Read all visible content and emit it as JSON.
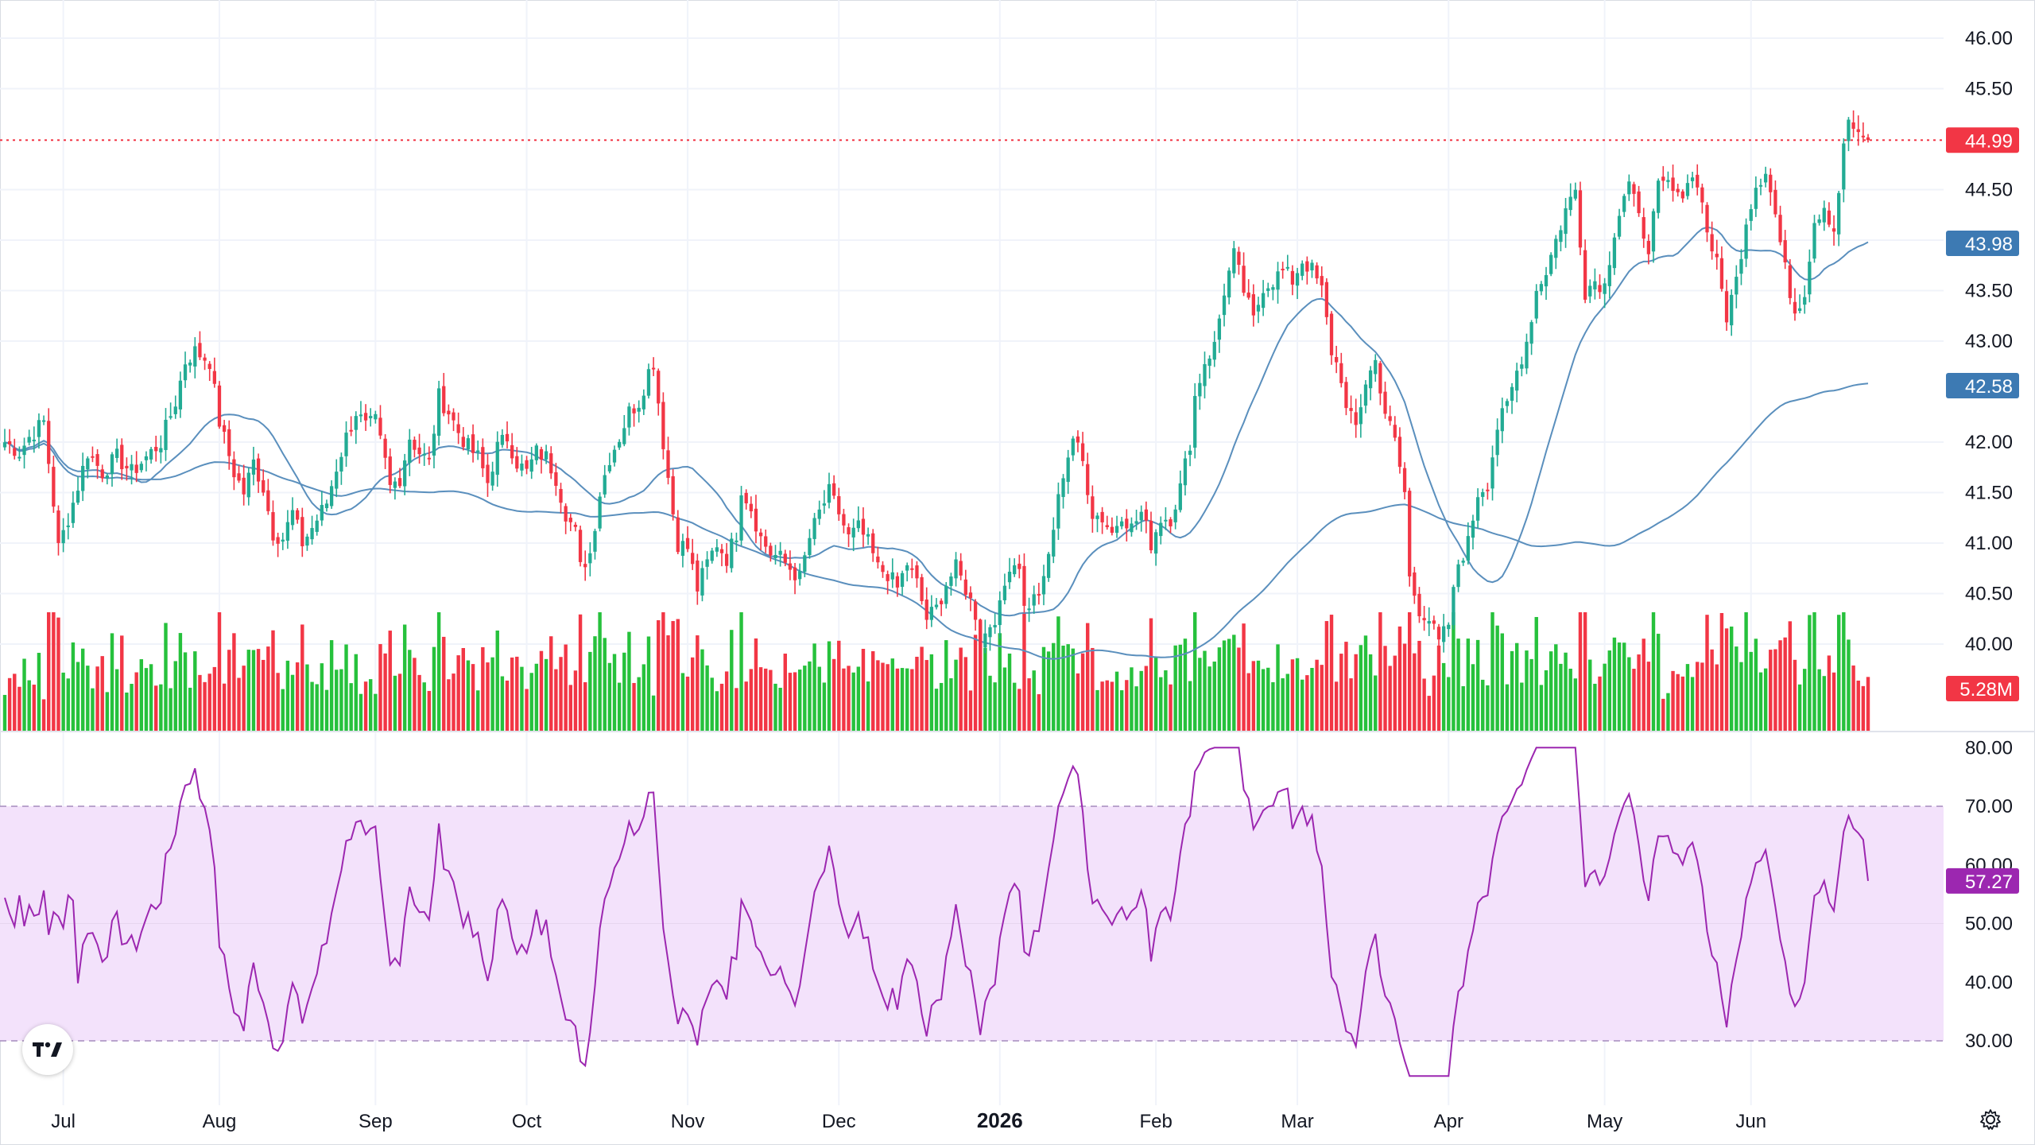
{
  "chart_data": {
    "type": "candlestick",
    "price_axis": {
      "ticks": [
        "46.00",
        "45.50",
        "44.50",
        "44.00",
        "43.50",
        "43.00",
        "42.00",
        "41.50",
        "41.00",
        "40.50",
        "40.00"
      ],
      "range": [
        39.7,
        46.2
      ]
    },
    "rsi_axis": {
      "ticks": [
        "80.00",
        "70.00",
        "60.00",
        "50.00",
        "40.00",
        "30.00"
      ],
      "range": [
        24,
        82
      ],
      "band": [
        30,
        70
      ]
    },
    "time_axis": {
      "labels": [
        {
          "text": "Jul",
          "day": 12,
          "bold": false
        },
        {
          "text": "Aug",
          "day": 44,
          "bold": false
        },
        {
          "text": "Sep",
          "day": 76,
          "bold": false
        },
        {
          "text": "Oct",
          "day": 107,
          "bold": false
        },
        {
          "text": "Nov",
          "day": 140,
          "bold": false
        },
        {
          "text": "Dec",
          "day": 171,
          "bold": false
        },
        {
          "text": "2026",
          "day": 204,
          "bold": true
        },
        {
          "text": "Feb",
          "day": 236,
          "bold": false
        },
        {
          "text": "Mar",
          "day": 265,
          "bold": false
        },
        {
          "text": "Apr",
          "day": 296,
          "bold": false
        },
        {
          "text": "May",
          "day": 328,
          "bold": false
        },
        {
          "text": "Jun",
          "day": 358,
          "bold": false
        }
      ]
    },
    "price_anchors": [
      [
        0,
        42.0
      ],
      [
        3,
        41.9
      ],
      [
        5,
        42.05
      ],
      [
        8,
        42.2
      ],
      [
        10,
        41.4
      ],
      [
        11,
        40.95
      ],
      [
        14,
        41.4
      ],
      [
        17,
        41.9
      ],
      [
        20,
        41.7
      ],
      [
        23,
        41.85
      ],
      [
        26,
        41.7
      ],
      [
        29,
        41.85
      ],
      [
        32,
        42.0
      ],
      [
        35,
        42.4
      ],
      [
        37,
        42.8
      ],
      [
        39,
        42.9
      ],
      [
        42,
        42.8
      ],
      [
        44,
        42.2
      ],
      [
        47,
        41.7
      ],
      [
        49,
        41.5
      ],
      [
        51,
        41.8
      ],
      [
        53,
        41.55
      ],
      [
        55,
        41.1
      ],
      [
        57,
        41.05
      ],
      [
        59,
        41.3
      ],
      [
        61,
        41.0
      ],
      [
        63,
        41.15
      ],
      [
        66,
        41.4
      ],
      [
        68,
        41.75
      ],
      [
        70,
        42.05
      ],
      [
        72,
        42.3
      ],
      [
        74,
        42.15
      ],
      [
        76,
        42.2
      ],
      [
        78,
        41.8
      ],
      [
        79,
        41.55
      ],
      [
        81,
        41.65
      ],
      [
        83,
        42.05
      ],
      [
        85,
        41.9
      ],
      [
        87,
        41.8
      ],
      [
        89,
        42.45
      ],
      [
        91,
        42.3
      ],
      [
        93,
        42.1
      ],
      [
        95,
        41.95
      ],
      [
        97,
        41.85
      ],
      [
        99,
        41.6
      ],
      [
        101,
        41.95
      ],
      [
        103,
        42.05
      ],
      [
        105,
        41.8
      ],
      [
        107,
        41.7
      ],
      [
        109,
        41.9
      ],
      [
        111,
        41.85
      ],
      [
        113,
        41.65
      ],
      [
        115,
        41.3
      ],
      [
        117,
        41.1
      ],
      [
        118,
        40.75
      ],
      [
        120,
        40.9
      ],
      [
        122,
        41.5
      ],
      [
        124,
        41.85
      ],
      [
        126,
        42.05
      ],
      [
        128,
        42.3
      ],
      [
        130,
        42.4
      ],
      [
        132,
        42.7
      ],
      [
        133,
        42.8
      ],
      [
        135,
        42.0
      ],
      [
        137,
        41.3
      ],
      [
        138,
        41.0
      ],
      [
        140,
        40.95
      ],
      [
        142,
        40.55
      ],
      [
        144,
        40.8
      ],
      [
        146,
        41.0
      ],
      [
        148,
        40.85
      ],
      [
        150,
        41.1
      ],
      [
        151,
        41.55
      ],
      [
        153,
        41.35
      ],
      [
        155,
        41.05
      ],
      [
        157,
        40.9
      ],
      [
        159,
        40.85
      ],
      [
        161,
        40.75
      ],
      [
        163,
        40.65
      ],
      [
        165,
        41.05
      ],
      [
        167,
        41.3
      ],
      [
        169,
        41.5
      ],
      [
        171,
        41.3
      ],
      [
        173,
        41.05
      ],
      [
        175,
        41.15
      ],
      [
        177,
        41.0
      ],
      [
        179,
        40.75
      ],
      [
        181,
        40.7
      ],
      [
        183,
        40.55
      ],
      [
        185,
        40.8
      ],
      [
        187,
        40.6
      ],
      [
        189,
        40.25
      ],
      [
        191,
        40.35
      ],
      [
        193,
        40.6
      ],
      [
        195,
        40.75
      ],
      [
        197,
        40.55
      ],
      [
        199,
        40.3
      ],
      [
        200,
        40.0
      ],
      [
        202,
        40.2
      ],
      [
        204,
        40.35
      ],
      [
        206,
        40.8
      ],
      [
        208,
        40.8
      ],
      [
        209,
        40.35
      ],
      [
        211,
        40.45
      ],
      [
        213,
        40.6
      ],
      [
        215,
        41.15
      ],
      [
        217,
        41.7
      ],
      [
        219,
        42.05
      ],
      [
        221,
        41.8
      ],
      [
        223,
        41.3
      ],
      [
        225,
        41.25
      ],
      [
        227,
        41.1
      ],
      [
        229,
        41.3
      ],
      [
        231,
        41.15
      ],
      [
        233,
        41.3
      ],
      [
        235,
        41.0
      ],
      [
        237,
        41.25
      ],
      [
        239,
        41.25
      ],
      [
        241,
        41.55
      ],
      [
        243,
        42.0
      ],
      [
        244,
        42.45
      ],
      [
        246,
        42.8
      ],
      [
        248,
        42.95
      ],
      [
        250,
        43.5
      ],
      [
        252,
        43.85
      ],
      [
        254,
        43.5
      ],
      [
        256,
        43.2
      ],
      [
        258,
        43.55
      ],
      [
        260,
        43.6
      ],
      [
        262,
        43.7
      ],
      [
        264,
        43.6
      ],
      [
        266,
        43.8
      ],
      [
        268,
        43.7
      ],
      [
        270,
        43.5
      ],
      [
        272,
        42.9
      ],
      [
        274,
        42.65
      ],
      [
        275,
        42.3
      ],
      [
        277,
        42.15
      ],
      [
        279,
        42.6
      ],
      [
        281,
        42.8
      ],
      [
        283,
        42.3
      ],
      [
        285,
        42.0
      ],
      [
        287,
        41.5
      ],
      [
        288,
        40.65
      ],
      [
        290,
        40.35
      ],
      [
        292,
        40.25
      ],
      [
        294,
        40.0
      ],
      [
        296,
        40.2
      ],
      [
        298,
        40.8
      ],
      [
        300,
        41.0
      ],
      [
        302,
        41.5
      ],
      [
        304,
        41.6
      ],
      [
        306,
        42.15
      ],
      [
        308,
        42.35
      ],
      [
        310,
        42.7
      ],
      [
        312,
        43.0
      ],
      [
        314,
        43.5
      ],
      [
        316,
        43.7
      ],
      [
        318,
        44.0
      ],
      [
        320,
        44.3
      ],
      [
        322,
        44.5
      ],
      [
        324,
        43.5
      ],
      [
        326,
        43.6
      ],
      [
        328,
        43.55
      ],
      [
        330,
        44.1
      ],
      [
        332,
        44.45
      ],
      [
        333,
        44.55
      ],
      [
        335,
        44.2
      ],
      [
        337,
        43.95
      ],
      [
        339,
        44.5
      ],
      [
        341,
        44.55
      ],
      [
        343,
        44.4
      ],
      [
        345,
        44.6
      ],
      [
        347,
        44.6
      ],
      [
        349,
        44.1
      ],
      [
        351,
        43.75
      ],
      [
        353,
        43.25
      ],
      [
        355,
        43.6
      ],
      [
        357,
        44.2
      ],
      [
        359,
        44.55
      ],
      [
        361,
        44.7
      ],
      [
        363,
        44.25
      ],
      [
        365,
        43.7
      ],
      [
        367,
        43.3
      ],
      [
        369,
        43.5
      ],
      [
        371,
        44.2
      ],
      [
        373,
        44.35
      ],
      [
        375,
        44.1
      ],
      [
        377,
        44.9
      ],
      [
        378,
        45.2
      ],
      [
        379,
        45.1
      ],
      [
        380,
        45.0
      ],
      [
        382,
        44.99
      ]
    ],
    "current_price": "44.99",
    "current_price_value": 44.99,
    "ma_short_last": "43.98",
    "ma_long_last": "42.58",
    "volume_last": "5.28M",
    "rsi_last": "57.27",
    "colors": {
      "up": "#22ab94",
      "down": "#f23645",
      "up_volume": "#26c13c",
      "down_volume": "#f23645",
      "ma_line": "#5a8fbd",
      "price_badge": "#f23645",
      "ma_badge": "#3d7ab3",
      "rsi_line": "#9c27b0",
      "rsi_band": "#f3e2fb",
      "rsi_badge": "#9c27b0"
    },
    "logo_icon": "tradingview-logo-icon",
    "settings_icon": "gear-icon"
  }
}
